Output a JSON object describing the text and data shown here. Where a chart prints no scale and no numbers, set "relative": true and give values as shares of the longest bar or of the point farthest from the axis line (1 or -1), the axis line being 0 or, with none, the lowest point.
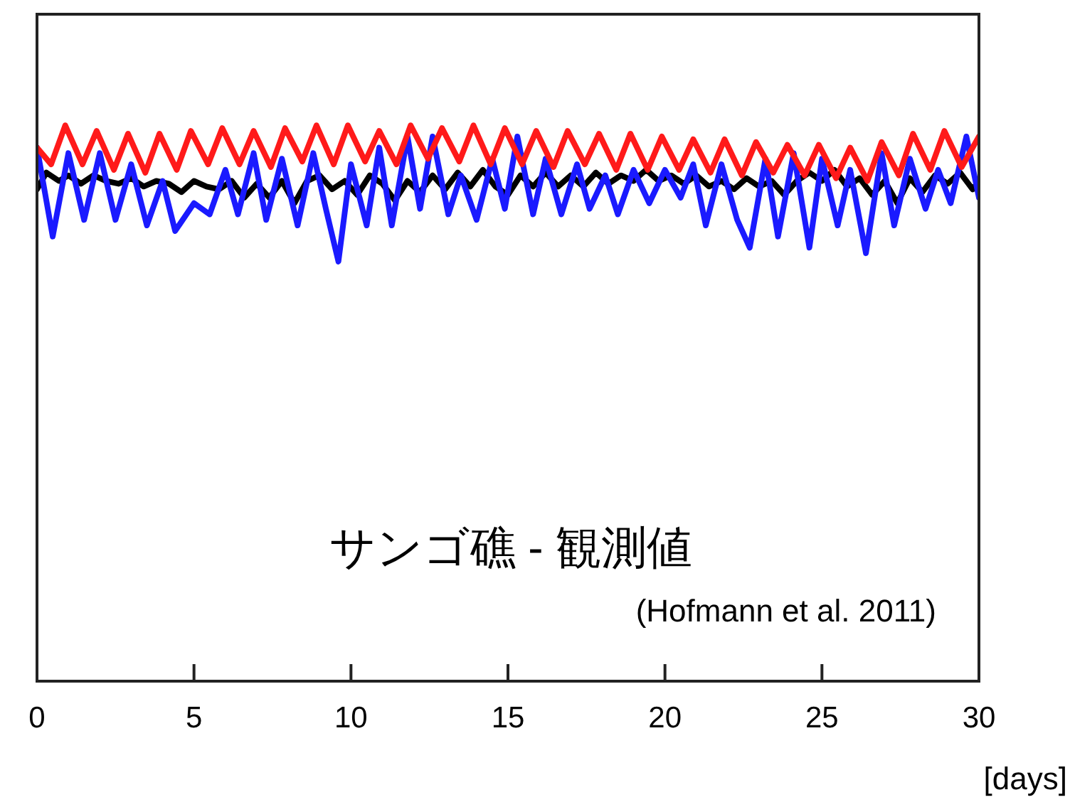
{
  "chart_data": {
    "type": "line",
    "relative": true,
    "xlabel": "[days]",
    "xlim": [
      0,
      30
    ],
    "xticks": [
      0,
      5,
      10,
      15,
      20,
      25,
      30
    ],
    "grid": false,
    "legend": false,
    "marker": "none",
    "line_style": "solid",
    "annotations": [
      "サンゴ礁 - 観測値",
      "(Hofmann et al. 2011)"
    ],
    "series": [
      {
        "color": "#ff1a1a",
        "x": [
          0,
          0.45,
          0.9,
          1.45,
          1.9,
          2.45,
          2.9,
          3.45,
          3.9,
          4.45,
          4.9,
          5.45,
          5.9,
          6.45,
          6.9,
          7.45,
          7.9,
          8.45,
          8.9,
          9.45,
          9.9,
          10.45,
          10.9,
          11.45,
          11.9,
          12.45,
          12.9,
          13.45,
          13.9,
          14.45,
          14.9,
          15.45,
          15.9,
          16.45,
          16.9,
          17.45,
          17.9,
          18.45,
          18.9,
          19.45,
          19.9,
          20.45,
          20.9,
          21.45,
          21.9,
          22.45,
          22.9,
          23.45,
          23.9,
          24.45,
          24.9,
          25.45,
          25.9,
          26.45,
          26.9,
          27.45,
          27.9,
          28.45,
          28.9,
          29.45,
          30
        ],
        "values": [
          0.96,
          0.93,
          1.0,
          0.93,
          0.99,
          0.92,
          0.985,
          0.915,
          0.985,
          0.92,
          0.99,
          0.93,
          0.995,
          0.93,
          0.99,
          0.925,
          0.995,
          0.935,
          1.0,
          0.93,
          1.0,
          0.935,
          0.99,
          0.93,
          1.0,
          0.94,
          0.995,
          0.935,
          1.0,
          0.93,
          0.995,
          0.93,
          0.99,
          0.925,
          0.99,
          0.93,
          0.985,
          0.92,
          0.985,
          0.92,
          0.98,
          0.92,
          0.975,
          0.915,
          0.975,
          0.91,
          0.97,
          0.915,
          0.965,
          0.91,
          0.965,
          0.905,
          0.96,
          0.9,
          0.97,
          0.91,
          0.985,
          0.92,
          0.99,
          0.925,
          0.98
        ]
      },
      {
        "color": "#1a1aff",
        "x": [
          0,
          0.5,
          1.0,
          1.5,
          2.0,
          2.5,
          3.0,
          3.5,
          4.0,
          4.4,
          5.0,
          5.5,
          6.0,
          6.4,
          6.9,
          7.3,
          7.8,
          8.3,
          8.8,
          9.2,
          9.6,
          10.0,
          10.5,
          10.9,
          11.3,
          11.8,
          12.2,
          12.6,
          13.1,
          13.5,
          14.0,
          14.5,
          14.9,
          15.3,
          15.8,
          16.2,
          16.7,
          17.2,
          17.6,
          18.1,
          18.5,
          19.0,
          19.5,
          20.0,
          20.5,
          20.9,
          21.3,
          21.8,
          22.3,
          22.7,
          23.2,
          23.6,
          24.1,
          24.6,
          25.0,
          25.5,
          25.9,
          26.4,
          26.9,
          27.3,
          27.8,
          28.3,
          28.7,
          29.1,
          29.6,
          30
        ],
        "values": [
          0.96,
          0.8,
          0.95,
          0.83,
          0.95,
          0.83,
          0.93,
          0.82,
          0.9,
          0.81,
          0.86,
          0.84,
          0.92,
          0.84,
          0.95,
          0.83,
          0.94,
          0.82,
          0.95,
          0.85,
          0.755,
          0.93,
          0.82,
          0.96,
          0.82,
          0.98,
          0.85,
          0.98,
          0.84,
          0.91,
          0.83,
          0.94,
          0.85,
          0.98,
          0.84,
          0.94,
          0.84,
          0.93,
          0.85,
          0.91,
          0.84,
          0.92,
          0.86,
          0.92,
          0.87,
          0.93,
          0.82,
          0.93,
          0.83,
          0.78,
          0.94,
          0.8,
          0.95,
          0.78,
          0.94,
          0.82,
          0.92,
          0.77,
          0.95,
          0.82,
          0.94,
          0.85,
          0.92,
          0.86,
          0.98,
          0.87
        ]
      },
      {
        "color": "#000000",
        "x": [
          0,
          0.3,
          0.7,
          1.0,
          1.4,
          1.8,
          2.2,
          2.6,
          3.0,
          3.4,
          3.8,
          4.2,
          4.6,
          5.0,
          5.4,
          5.8,
          6.2,
          6.6,
          7.0,
          7.4,
          7.8,
          8.2,
          8.6,
          9.0,
          9.4,
          9.8,
          10.2,
          10.6,
          11.0,
          11.4,
          11.8,
          12.2,
          12.6,
          13.0,
          13.4,
          13.8,
          14.2,
          14.6,
          15.0,
          15.4,
          15.8,
          16.2,
          16.6,
          17.0,
          17.4,
          17.8,
          18.2,
          18.6,
          19.0,
          19.4,
          19.8,
          20.2,
          20.6,
          21.0,
          21.4,
          21.8,
          22.2,
          22.6,
          23.0,
          23.4,
          23.8,
          24.2,
          24.6,
          25.0,
          25.4,
          25.8,
          26.2,
          26.6,
          27.0,
          27.4,
          27.8,
          28.2,
          28.6,
          29.0,
          29.4,
          29.8,
          30
        ],
        "values": [
          0.885,
          0.915,
          0.9,
          0.91,
          0.895,
          0.91,
          0.9,
          0.895,
          0.905,
          0.89,
          0.9,
          0.895,
          0.88,
          0.9,
          0.89,
          0.885,
          0.9,
          0.87,
          0.895,
          0.87,
          0.9,
          0.86,
          0.9,
          0.91,
          0.885,
          0.9,
          0.875,
          0.91,
          0.895,
          0.865,
          0.9,
          0.88,
          0.91,
          0.885,
          0.915,
          0.89,
          0.92,
          0.89,
          0.875,
          0.91,
          0.89,
          0.915,
          0.89,
          0.91,
          0.89,
          0.915,
          0.895,
          0.91,
          0.9,
          0.92,
          0.9,
          0.91,
          0.895,
          0.91,
          0.89,
          0.9,
          0.885,
          0.905,
          0.89,
          0.9,
          0.875,
          0.9,
          0.915,
          0.9,
          0.92,
          0.89,
          0.905,
          0.875,
          0.9,
          0.86,
          0.905,
          0.88,
          0.91,
          0.895,
          0.915,
          0.885,
          0.9
        ]
      }
    ]
  }
}
